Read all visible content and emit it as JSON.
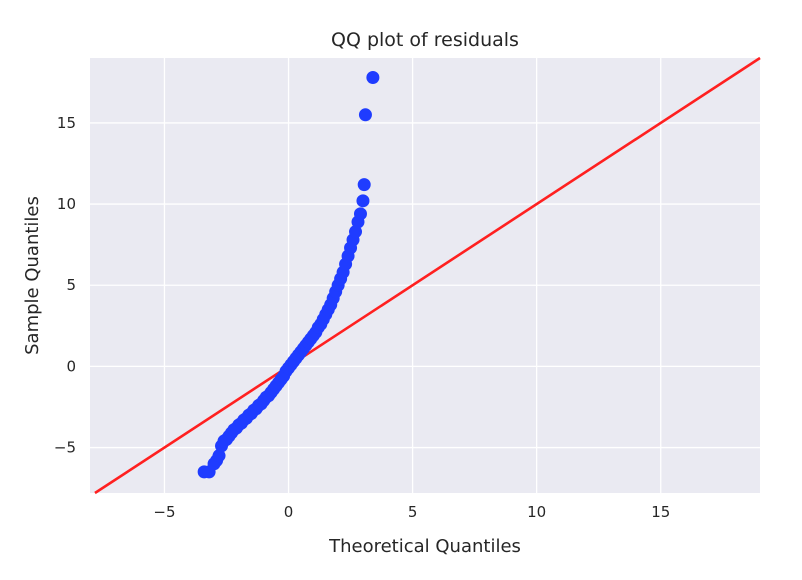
{
  "chart_data": {
    "type": "scatter",
    "title": "QQ plot of residuals",
    "xlabel": "Theoretical Quantiles",
    "ylabel": "Sample Quantiles",
    "xlim": [
      -8,
      19
    ],
    "ylim": [
      -7.8,
      19
    ],
    "xticks": [
      -5,
      0,
      5,
      10,
      15
    ],
    "yticks": [
      -5,
      0,
      5,
      10,
      15
    ],
    "grid": true,
    "colors": {
      "background": "#eaeaf2",
      "grid": "#ffffff",
      "points": "#1f3cff",
      "reference_line": "#ff2020"
    },
    "reference_line": {
      "slope": 1,
      "intercept": 0,
      "label": "45-degree line"
    },
    "series": [
      {
        "points": [
          [
            -3.4,
            -6.5
          ],
          [
            -3.2,
            -6.5
          ],
          [
            -3.0,
            -6.0
          ],
          [
            -2.9,
            -5.8
          ],
          [
            -2.8,
            -5.5
          ],
          [
            -2.7,
            -4.9
          ],
          [
            -2.6,
            -4.6
          ],
          [
            -2.5,
            -4.5
          ],
          [
            -2.4,
            -4.3
          ],
          [
            -2.3,
            -4.1
          ],
          [
            -2.2,
            -3.9
          ],
          [
            -2.1,
            -3.8
          ],
          [
            -2.0,
            -3.6
          ],
          [
            -1.9,
            -3.5
          ],
          [
            -1.8,
            -3.3
          ],
          [
            -1.7,
            -3.2
          ],
          [
            -1.6,
            -3.0
          ],
          [
            -1.5,
            -2.9
          ],
          [
            -1.4,
            -2.7
          ],
          [
            -1.3,
            -2.6
          ],
          [
            -1.2,
            -2.4
          ],
          [
            -1.1,
            -2.3
          ],
          [
            -1.0,
            -2.1
          ],
          [
            -0.9,
            -1.9
          ],
          [
            -0.8,
            -1.8
          ],
          [
            -0.7,
            -1.6
          ],
          [
            -0.6,
            -1.4
          ],
          [
            -0.5,
            -1.2
          ],
          [
            -0.4,
            -1.0
          ],
          [
            -0.3,
            -0.8
          ],
          [
            -0.2,
            -0.6
          ],
          [
            -0.1,
            -0.3
          ],
          [
            0.0,
            -0.1
          ],
          [
            0.1,
            0.1
          ],
          [
            0.2,
            0.3
          ],
          [
            0.3,
            0.5
          ],
          [
            0.4,
            0.7
          ],
          [
            0.5,
            0.9
          ],
          [
            0.6,
            1.1
          ],
          [
            0.7,
            1.3
          ],
          [
            0.8,
            1.5
          ],
          [
            0.9,
            1.7
          ],
          [
            1.0,
            1.9
          ],
          [
            1.1,
            2.1
          ],
          [
            1.2,
            2.4
          ],
          [
            1.3,
            2.6
          ],
          [
            1.4,
            2.9
          ],
          [
            1.5,
            3.2
          ],
          [
            1.6,
            3.5
          ],
          [
            1.7,
            3.8
          ],
          [
            1.8,
            4.2
          ],
          [
            1.9,
            4.6
          ],
          [
            2.0,
            5.0
          ],
          [
            2.1,
            5.4
          ],
          [
            2.2,
            5.8
          ],
          [
            2.3,
            6.3
          ],
          [
            2.4,
            6.8
          ],
          [
            2.5,
            7.3
          ],
          [
            2.6,
            7.8
          ],
          [
            2.7,
            8.3
          ],
          [
            2.8,
            8.9
          ],
          [
            2.9,
            9.4
          ],
          [
            3.0,
            10.2
          ],
          [
            3.05,
            11.2
          ],
          [
            3.1,
            15.5
          ],
          [
            3.4,
            17.8
          ]
        ]
      }
    ]
  }
}
